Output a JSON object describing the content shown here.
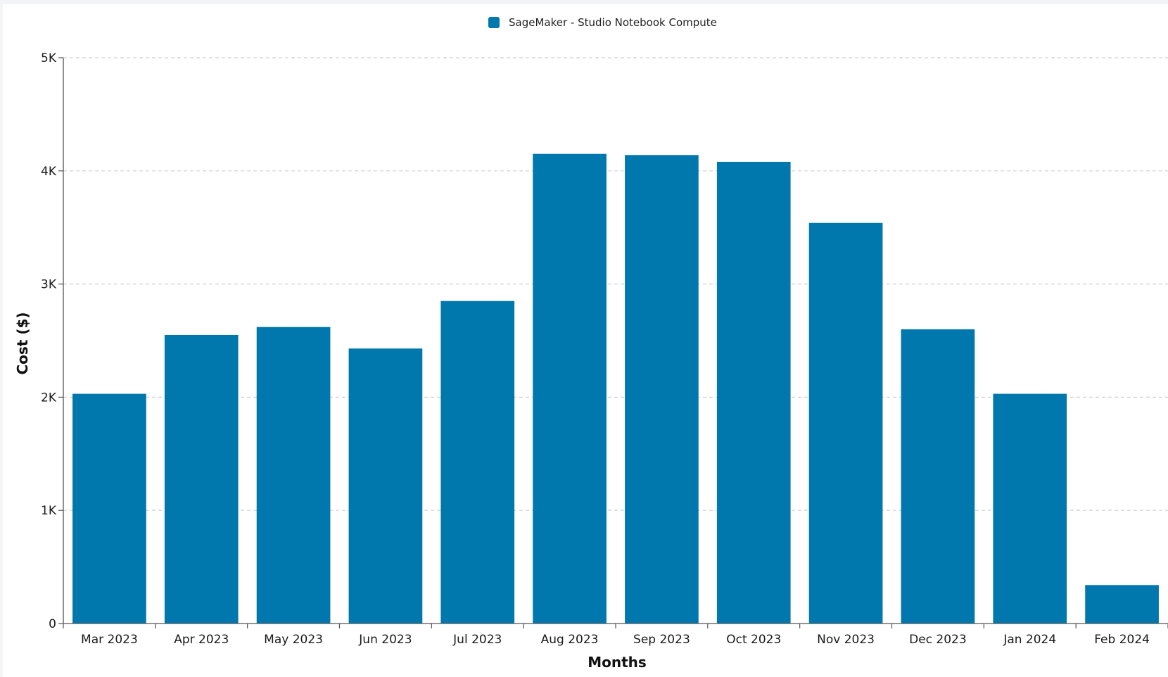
{
  "chart_data": {
    "type": "bar",
    "title": "",
    "xlabel": "Months",
    "ylabel": "Cost ($)",
    "categories": [
      "Mar 2023",
      "Apr 2023",
      "May 2023",
      "Jun 2023",
      "Jul 2023",
      "Aug 2023",
      "Sep 2023",
      "Oct 2023",
      "Nov 2023",
      "Dec 2023",
      "Jan 2024",
      "Feb 2024"
    ],
    "series": [
      {
        "name": "SageMaker - Studio Notebook Compute",
        "color": "#0077ad",
        "values": [
          2030,
          2550,
          2620,
          2430,
          2850,
          4150,
          4140,
          4080,
          3540,
          2600,
          2030,
          340
        ]
      }
    ],
    "ylim": [
      0,
      5000
    ],
    "yticks": [
      0,
      1000,
      2000,
      3000,
      4000,
      5000
    ],
    "ytick_labels": [
      "0",
      "1K",
      "2K",
      "3K",
      "4K",
      "5K"
    ],
    "grid": "horizontal dashed",
    "legend": "top-center"
  }
}
